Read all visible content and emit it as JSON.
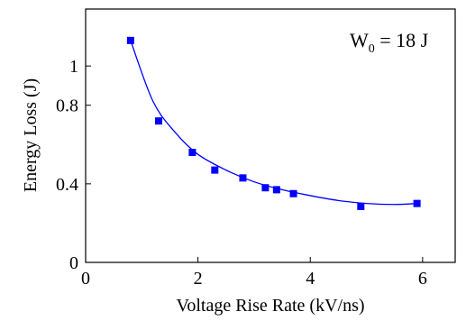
{
  "chart_data": {
    "type": "scatter",
    "x_label": "Voltage Rise Rate (kV/ns)",
    "y_label": "Energy Loss (J)",
    "annotation": {
      "main": "W",
      "subscript": "0",
      "rest": " = 18 J"
    },
    "color": "#0000ff",
    "x": [
      0.8,
      1.3,
      1.9,
      2.3,
      2.8,
      3.2,
      3.4,
      3.7,
      4.9,
      5.9
    ],
    "values": [
      1.13,
      0.72,
      0.56,
      0.47,
      0.43,
      0.38,
      0.37,
      0.35,
      0.285,
      0.3
    ],
    "fit": {
      "x": [
        0.8,
        1.2,
        1.6,
        2.0,
        2.5,
        3.0,
        3.5,
        4.0,
        4.5,
        5.0,
        5.5,
        5.9
      ],
      "values": [
        1.13,
        0.82,
        0.66,
        0.55,
        0.47,
        0.41,
        0.37,
        0.34,
        0.315,
        0.3,
        0.295,
        0.3
      ]
    },
    "xlim": [
      0,
      6.58
    ],
    "xticks": [
      0,
      2,
      4,
      6
    ],
    "ylim": [
      0,
      1.29
    ],
    "yticks": [
      0,
      0.4,
      0.8,
      1.0
    ]
  }
}
